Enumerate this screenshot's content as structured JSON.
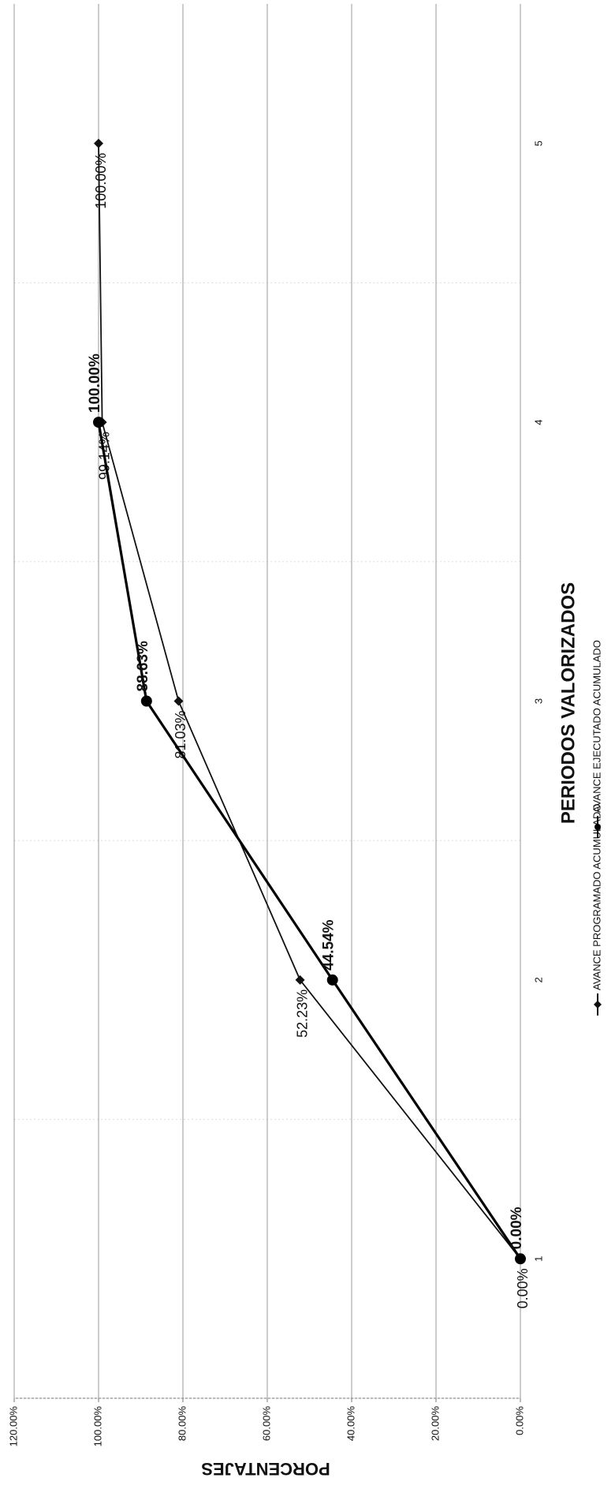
{
  "chart_data": {
    "type": "line",
    "x_label": "PERIODOS VALORIZADOS",
    "y_label": "PORCENTAJES",
    "categories": [
      "1",
      "2",
      "3",
      "4",
      "5"
    ],
    "series": [
      {
        "name": "AVANCE PROGRAMADO ACUMULADO",
        "color": "#111111",
        "marker": "diamond",
        "values": [
          0,
          52.23,
          81.03,
          99.14,
          100
        ],
        "value_labels": [
          "0.00%",
          "52.23%",
          "81.03%",
          "99.14%",
          "100.00%"
        ]
      },
      {
        "name": "AVANCE EJECUTADO ACUMULADO",
        "color": "#000000",
        "marker": "circle",
        "values": [
          0,
          44.54,
          88.63,
          100,
          null
        ],
        "value_labels": [
          "0.00%",
          "44.54%",
          "88.63%",
          "100.00%",
          null
        ]
      }
    ],
    "ylim": [
      0,
      120
    ],
    "yticks": [
      {
        "value": 0,
        "label": "0.00%"
      },
      {
        "value": 20,
        "label": "20.00%"
      },
      {
        "value": 40,
        "label": "40.00%"
      },
      {
        "value": 60,
        "label": "60.00%"
      },
      {
        "value": 80,
        "label": "80.00%"
      },
      {
        "value": 100,
        "label": "100.00%"
      },
      {
        "value": 120,
        "label": "120.00%"
      }
    ],
    "grid": true,
    "legend": "bottom"
  }
}
